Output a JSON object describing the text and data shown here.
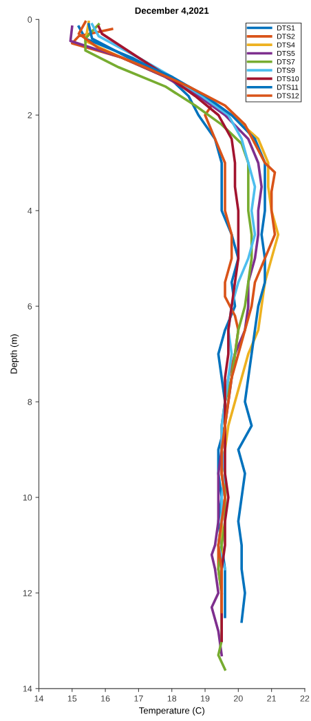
{
  "chart_data": {
    "type": "line",
    "title": "December 4,2021",
    "xlabel": "Temperature (C)",
    "ylabel": "Depth (m)",
    "xlim": [
      14,
      22
    ],
    "xticks": [
      14,
      15,
      16,
      17,
      18,
      19,
      20,
      21,
      22
    ],
    "ylim": [
      14,
      0
    ],
    "yticks": [
      0,
      2,
      4,
      6,
      8,
      10,
      12,
      14
    ],
    "grid": false,
    "legend": "top right",
    "marker": "none",
    "line_style": "solid",
    "series": [
      {
        "name": "DTS1",
        "color": "#0072bd",
        "x": [
          15.2,
          15.4,
          16.8,
          17.9,
          18.5,
          18.8,
          19.3,
          19.5,
          19.5,
          19.5,
          19.8,
          20.0,
          19.8,
          19.9,
          19.6,
          19.4,
          19.5,
          19.6,
          19.6,
          19.4,
          19.4,
          19.5,
          19.4,
          19.5,
          19.6,
          19.6,
          19.6
        ],
        "values": [
          0.15,
          0.4,
          0.8,
          1.2,
          1.6,
          2.0,
          2.5,
          3.0,
          3.5,
          4.0,
          4.5,
          5.0,
          5.5,
          6.0,
          6.5,
          7.0,
          7.5,
          8.0,
          8.5,
          9.0,
          9.5,
          10,
          10.5,
          11,
          11.5,
          12,
          12.5
        ]
      },
      {
        "name": "DTS2",
        "color": "#d95319",
        "x": [
          16.2,
          15.2,
          15.0,
          16.5,
          17.8,
          18.8,
          19.2,
          19.0,
          19.3,
          19.6,
          19.6,
          19.6,
          19.8,
          19.8,
          19.6,
          19.6,
          19.9,
          20.0,
          19.9,
          19.7,
          19.6,
          19.5,
          19.5,
          19.5,
          19.6,
          19.5,
          19.4,
          19.4,
          19.5
        ],
        "values": [
          0.2,
          0.35,
          0.5,
          0.8,
          1.2,
          1.6,
          1.8,
          2.0,
          2.5,
          3.0,
          3.5,
          4.0,
          4.5,
          5.0,
          5.5,
          5.8,
          6.2,
          6.5,
          7.0,
          7.5,
          8.0,
          8.5,
          9.0,
          9.5,
          10,
          10.5,
          11,
          11.5,
          12
        ]
      },
      {
        "name": "DTS4",
        "color": "#edb120",
        "x": [
          15.5,
          15.4,
          16.5,
          17.8,
          18.9,
          19.8,
          20.6,
          20.9,
          20.9,
          21.0,
          21.2,
          21.0,
          20.8,
          20.7,
          20.6,
          20.3,
          20.1,
          19.9,
          19.7,
          19.6,
          19.5,
          19.6,
          19.5,
          19.5,
          19.5,
          19.5
        ],
        "values": [
          0.05,
          0.45,
          0.8,
          1.2,
          1.6,
          2.0,
          2.5,
          3.0,
          3.5,
          4.0,
          4.5,
          5.0,
          5.5,
          6.0,
          6.5,
          7.0,
          7.5,
          8.0,
          8.5,
          9.0,
          9.5,
          10,
          10.5,
          11,
          11.5,
          12
        ]
      },
      {
        "name": "DTS5",
        "color": "#7e2f8e",
        "x": [
          15.0,
          14.95,
          16.5,
          17.8,
          18.8,
          19.6,
          20.3,
          20.6,
          20.7,
          20.6,
          20.6,
          20.5,
          20.3,
          20.3,
          20.2,
          19.9,
          19.8,
          19.7,
          19.6,
          19.5,
          19.4,
          19.4,
          19.4,
          19.3,
          19.2,
          19.3,
          19.4,
          19.2,
          19.4,
          19.5
        ],
        "values": [
          0.15,
          0.45,
          0.8,
          1.2,
          1.6,
          2.0,
          2.5,
          3.0,
          3.5,
          4.0,
          4.5,
          5.0,
          5.5,
          6.0,
          6.5,
          7.0,
          7.5,
          8.0,
          8.5,
          9.0,
          9.5,
          10,
          10.5,
          11,
          11.2,
          11.5,
          12,
          12.3,
          12.8,
          13.3
        ]
      },
      {
        "name": "DTS7",
        "color": "#77ac30",
        "x": [
          15.8,
          15.4,
          15.4,
          16.4,
          17.8,
          18.7,
          19.5,
          20.1,
          20.3,
          20.3,
          20.3,
          20.4,
          20.4,
          20.3,
          20.2,
          20.0,
          19.9,
          19.8,
          19.6,
          19.6,
          19.5,
          19.6,
          19.6,
          19.6,
          19.5,
          19.4,
          19.5,
          19.5,
          19.5,
          19.4,
          19.6
        ],
        "values": [
          0.1,
          0.4,
          0.65,
          1.0,
          1.4,
          1.8,
          2.2,
          2.6,
          3.0,
          3.5,
          4.0,
          4.5,
          5.0,
          5.5,
          6.0,
          6.5,
          7.0,
          7.5,
          8.0,
          8.5,
          9.0,
          9.5,
          10,
          10.5,
          11,
          11.5,
          12,
          12.5,
          13,
          13.3,
          13.6
        ]
      },
      {
        "name": "DTS9",
        "color": "#4dbeee",
        "x": [
          15.6,
          15.8,
          17.0,
          18.0,
          18.9,
          19.7,
          20.1,
          20.3,
          20.5,
          20.4,
          20.5,
          20.3,
          20.0,
          19.8,
          19.7,
          19.8,
          19.7,
          19.6,
          19.5,
          19.5,
          19.6,
          19.5,
          19.5,
          19.4,
          19.6
        ],
        "values": [
          0.1,
          0.35,
          0.8,
          1.2,
          1.6,
          2.0,
          2.5,
          3.0,
          3.5,
          4.0,
          4.5,
          5.0,
          5.5,
          6.0,
          6.5,
          7.0,
          7.5,
          8.0,
          8.5,
          9.0,
          9.5,
          10,
          10.5,
          11,
          11.5
        ]
      },
      {
        "name": "DTS10",
        "color": "#a2142f",
        "x": [
          15.8,
          15.9,
          17.0,
          17.9,
          18.7,
          19.4,
          19.8,
          19.9,
          19.9,
          20.0,
          20.0,
          20.0,
          19.9,
          19.8,
          19.7,
          19.7,
          19.6,
          19.6,
          19.6,
          19.6,
          19.6,
          19.7,
          19.6,
          19.6,
          19.5,
          19.5,
          19.5,
          19.5
        ],
        "values": [
          0.15,
          0.3,
          0.8,
          1.2,
          1.6,
          2.0,
          2.5,
          3.0,
          3.5,
          4.0,
          4.5,
          5.0,
          5.5,
          6.0,
          6.5,
          7.0,
          7.5,
          8.0,
          8.5,
          9.0,
          9.5,
          10,
          10.5,
          11,
          11.5,
          12,
          12.5,
          13.0
        ]
      },
      {
        "name": "DTS11",
        "color": "#0072bd",
        "x": [
          15.5,
          15.6,
          16.7,
          18.0,
          19.0,
          19.8,
          20.5,
          20.8,
          20.8,
          20.8,
          20.7,
          20.8,
          20.8,
          20.6,
          20.5,
          20.4,
          20.3,
          20.2,
          20.4,
          20.0,
          20.2,
          20.1,
          20.0,
          20.1,
          20.1,
          20.2,
          20.1
        ],
        "values": [
          0.1,
          0.4,
          0.8,
          1.2,
          1.6,
          2.0,
          2.5,
          3.0,
          3.5,
          4.0,
          4.5,
          5.0,
          5.5,
          6.0,
          6.5,
          7.0,
          7.5,
          8.0,
          8.5,
          9.0,
          9.5,
          10,
          10.5,
          11,
          11.5,
          12,
          12.6
        ]
      },
      {
        "name": "DTS12",
        "color": "#d95319",
        "x": [
          15.4,
          15.2,
          15.8,
          17.2,
          18.5,
          19.6,
          20.2,
          20.5,
          20.8,
          21.1,
          21.0,
          21.0,
          21.1,
          20.8,
          20.5,
          20.4,
          20.2,
          20.0,
          19.8,
          19.7,
          19.6,
          19.5,
          19.5,
          19.6,
          19.5,
          19.4,
          19.5,
          19.5,
          19.5
        ],
        "values": [
          0.05,
          0.3,
          0.6,
          1.0,
          1.4,
          1.8,
          2.2,
          2.6,
          3.0,
          3.2,
          3.6,
          4.0,
          4.5,
          5.0,
          5.5,
          6.0,
          6.5,
          7.0,
          7.5,
          8.0,
          8.5,
          9.0,
          9.5,
          10,
          10.5,
          11,
          11.5,
          12,
          12.4
        ]
      }
    ]
  }
}
